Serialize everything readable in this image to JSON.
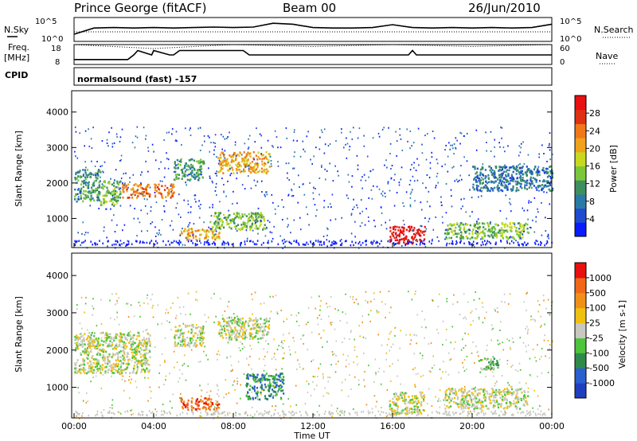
{
  "header": {
    "station": "Prince George (fitACF)",
    "beam": "Beam 00",
    "date": "26/Jun/2010"
  },
  "noise_panel": {
    "left_label": "N.Sky",
    "right_label": "N.Search",
    "left_ticks": [
      "10^5",
      "10^0"
    ],
    "right_ticks": [
      "10^5",
      "10^0"
    ]
  },
  "freq_panel": {
    "left_label_1": "Freq.",
    "left_label_2": "[MHz]",
    "right_label": "Nave",
    "left_ticks": [
      "18",
      "8"
    ],
    "right_ticks": [
      "60",
      "0"
    ]
  },
  "cpid": {
    "label": "CPID",
    "text": "normalsound (fast) -157"
  },
  "x_axis": {
    "label": "Time UT",
    "ticks": [
      "00:00",
      "04:00",
      "08:00",
      "12:00",
      "16:00",
      "20:00",
      "00:00"
    ]
  },
  "power_panel": {
    "ylabel": "Slant Range [km]",
    "yticks": [
      "4000",
      "3000",
      "2000",
      "1000"
    ],
    "colorbar_label": "Power [dB]",
    "colorbar_ticks": [
      "28",
      "24",
      "20",
      "16",
      "12",
      "8",
      "4"
    ],
    "colors": [
      "#0a1cff",
      "#1f4bd0",
      "#2a7aa8",
      "#3e8f5e",
      "#7ac83a",
      "#c8d81e",
      "#f0a21a",
      "#f07818",
      "#e03014",
      "#e81010"
    ]
  },
  "velocity_panel": {
    "ylabel": "Slant Range [km]",
    "yticks": [
      "4000",
      "3000",
      "2000",
      "1000"
    ],
    "colorbar_label": "Velocity [m s-1]",
    "colorbar_ticks": [
      "1000",
      "500",
      "100",
      "25",
      "-25",
      "-100",
      "-500",
      "-1000"
    ],
    "colors": [
      "#1f3fbf",
      "#2a5fd0",
      "#2e8a4a",
      "#4cc43c",
      "#c8c8c0",
      "#f0c010",
      "#f09018",
      "#f06818",
      "#e81010"
    ]
  },
  "chart_data": [
    {
      "type": "line",
      "panel": "Noise",
      "x_units": "hours UT",
      "series": [
        {
          "name": "N.Sky",
          "x": [
            0,
            1,
            2,
            3,
            4,
            5,
            6,
            7,
            8,
            9,
            10,
            11,
            12,
            13,
            14,
            15,
            16,
            17,
            18,
            19,
            20,
            21,
            22,
            23,
            24
          ],
          "y_log10": [
            1.5,
            2.8,
            2.9,
            2.8,
            2.9,
            2.8,
            2.9,
            3.0,
            2.9,
            3.0,
            3.8,
            3.6,
            2.9,
            2.8,
            2.8,
            2.9,
            3.5,
            2.9,
            2.8,
            2.9,
            2.8,
            2.9,
            2.8,
            2.9,
            3.6
          ]
        },
        {
          "name": "N.Search",
          "x": [
            0,
            12,
            24
          ],
          "y_log10": [
            2.0,
            2.0,
            2.0
          ]
        }
      ],
      "ylim_log10": [
        0,
        5
      ]
    },
    {
      "type": "line",
      "panel": "Freq./Nave",
      "x_units": "hours UT",
      "series": [
        {
          "name": "Freq.",
          "x": [
            0,
            2.7,
            3.0,
            3.2,
            3.9,
            4.0,
            4.8,
            5.0,
            5.3,
            8.5,
            8.8,
            12,
            15.5,
            16.0,
            16.8,
            17.0,
            17.2,
            24
          ],
          "y": [
            10.5,
            10.5,
            12.8,
            15,
            12.8,
            15,
            12.8,
            12.8,
            15,
            15,
            12.8,
            12.8,
            12.8,
            12.8,
            12.8,
            15,
            12.8,
            12.8
          ]
        },
        {
          "name": "Nave",
          "x": [
            0,
            4,
            8,
            12,
            16,
            20,
            24
          ],
          "y": [
            18,
            16,
            18,
            17,
            18,
            17,
            18
          ]
        }
      ],
      "ylim": [
        8,
        18
      ]
    },
    {
      "type": "heatmap",
      "panel": "Power",
      "xlabel": "Time UT",
      "ylabel": "Slant Range [km]",
      "xlim_hours": [
        0,
        24
      ],
      "ylim": [
        180,
        4600
      ],
      "colorbar": {
        "label": "Power [dB]",
        "ticks": [
          28,
          24,
          20,
          16,
          12,
          8,
          4
        ]
      },
      "regions": [
        {
          "t": [
            0.0,
            1.3
          ],
          "r": [
            1500,
            2400
          ],
          "level": 3
        },
        {
          "t": [
            1.3,
            2.3
          ],
          "r": [
            1400,
            2100
          ],
          "level": 4
        },
        {
          "t": [
            2.4,
            3.8
          ],
          "r": [
            1600,
            2000
          ],
          "level": 7
        },
        {
          "t": [
            4.0,
            5.0
          ],
          "r": [
            1600,
            2000
          ],
          "level": 7
        },
        {
          "t": [
            5.0,
            6.5
          ],
          "r": [
            2100,
            2700
          ],
          "level": 3
        },
        {
          "t": [
            5.3,
            7.3
          ],
          "r": [
            420,
            740
          ],
          "level": 6
        },
        {
          "t": [
            6.8,
            9.6
          ],
          "r": [
            700,
            1200
          ],
          "level": 4
        },
        {
          "t": [
            7.2,
            9.8
          ],
          "r": [
            2300,
            2900
          ],
          "level": 6
        },
        {
          "t": [
            15.8,
            17.6
          ],
          "r": [
            300,
            800
          ],
          "level": 9
        },
        {
          "t": [
            18.6,
            22.8
          ],
          "r": [
            450,
            900
          ],
          "level": 4
        },
        {
          "t": [
            20.0,
            24.0
          ],
          "r": [
            1800,
            2500
          ],
          "level": 2
        }
      ]
    },
    {
      "type": "heatmap",
      "panel": "Velocity",
      "xlabel": "Time UT",
      "ylabel": "Slant Range [km]",
      "xlim_hours": [
        0,
        24
      ],
      "ylim": [
        180,
        4600
      ],
      "colorbar": {
        "label": "Velocity [m s-1]",
        "ticks": [
          1000,
          500,
          100,
          25,
          -25,
          -100,
          -500,
          -1000
        ]
      },
      "regions": [
        {
          "t": [
            0.0,
            3.8
          ],
          "r": [
            1400,
            2500
          ],
          "level": 4
        },
        {
          "t": [
            5.0,
            6.5
          ],
          "r": [
            2100,
            2700
          ],
          "level": 4
        },
        {
          "t": [
            5.3,
            7.3
          ],
          "r": [
            420,
            740
          ],
          "level": 7
        },
        {
          "t": [
            7.2,
            9.8
          ],
          "r": [
            2300,
            2900
          ],
          "level": 4
        },
        {
          "t": [
            8.6,
            10.5
          ],
          "r": [
            700,
            1400
          ],
          "level": 2
        },
        {
          "t": [
            15.8,
            17.6
          ],
          "r": [
            300,
            900
          ],
          "level": 4
        },
        {
          "t": [
            18.6,
            22.8
          ],
          "r": [
            450,
            1000
          ],
          "level": 4
        },
        {
          "t": [
            20.3,
            21.3
          ],
          "r": [
            1500,
            1800
          ],
          "level": 3
        }
      ]
    }
  ]
}
